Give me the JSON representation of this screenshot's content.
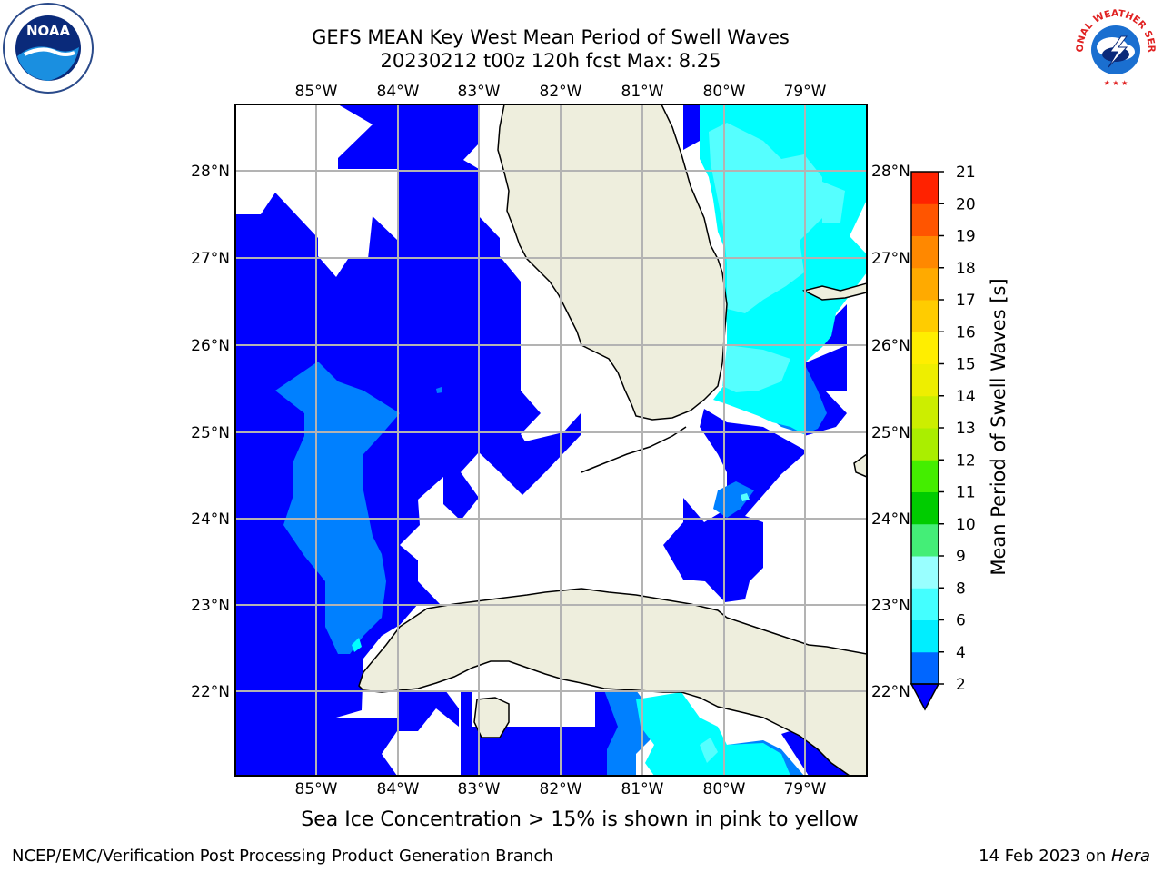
{
  "title": {
    "line1": "GEFS MEAN Key West Mean Period of Swell Waves",
    "line2": "20230212 t00z 120h fcst   Max: 8.25"
  },
  "map": {
    "lon_labels": [
      "85°W",
      "84°W",
      "83°W",
      "82°W",
      "81°W",
      "80°W",
      "79°W"
    ],
    "lat_labels": [
      "28°N",
      "27°N",
      "26°N",
      "25°N",
      "24°N",
      "23°N",
      "22°N"
    ],
    "land_color": "#eeeedd",
    "grid_color": "#b3b3b3"
  },
  "colorbar": {
    "label": "Mean Period of Swell Waves [s]",
    "ticks": [
      "2",
      "4",
      "6",
      "8",
      "9",
      "10",
      "11",
      "12",
      "13",
      "14",
      "15",
      "16",
      "17",
      "18",
      "19",
      "20",
      "21"
    ],
    "colors": [
      "#0066ff",
      "#00eeff",
      "#44ffff",
      "#99ffff",
      "#44ee77",
      "#00cc00",
      "#44ee00",
      "#aaee00",
      "#ccee00",
      "#eeee00",
      "#ffee00",
      "#ffcc00",
      "#ffaa00",
      "#ff8800",
      "#ff5500",
      "#ff2200",
      "#ff0000"
    ],
    "under_color": "#0000ff"
  },
  "legend_colors": {
    "p0": "#0000ff",
    "p2": "#0080ff",
    "p4": "#00ffff",
    "p6": "#55ffff"
  },
  "subcaption": "Sea Ice Concentration > 15% is shown in pink to yellow",
  "footer": {
    "left": "NCEP/EMC/Verification Post Processing Product Generation Branch",
    "date": "14 Feb 2023 on ",
    "host": "Hera"
  },
  "logos": {
    "noaa": "NOAA",
    "nws": "NATIONAL WEATHER SERVICE"
  }
}
